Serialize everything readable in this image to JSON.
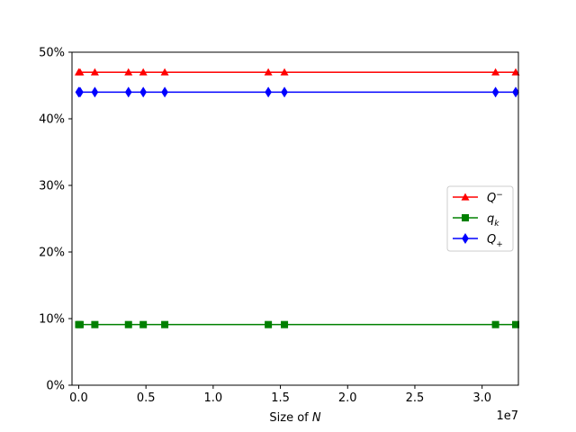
{
  "chart_data": {
    "type": "line",
    "xlabel_prefix": "Size of ",
    "xlabel_var": "N",
    "x_offset_label": "1e7",
    "xlim": [
      -0.05,
      3.27
    ],
    "ylim": [
      0,
      50
    ],
    "x_ticks": [
      0.0,
      0.5,
      1.0,
      1.5,
      2.0,
      2.5,
      3.0
    ],
    "x_tick_labels": [
      "0.0",
      "0.5",
      "1.0",
      "1.5",
      "2.0",
      "2.5",
      "3.0"
    ],
    "y_ticks": [
      0,
      10,
      20,
      30,
      40,
      50
    ],
    "y_tick_labels": [
      "0%",
      "10%",
      "20%",
      "30%",
      "40%",
      "50%"
    ],
    "x": [
      0.0,
      0.01,
      0.12,
      0.37,
      0.48,
      0.64,
      1.41,
      1.53,
      3.1,
      3.25
    ],
    "series": [
      {
        "name": "Q^-",
        "legend_main": "Q",
        "legend_sup": "−",
        "legend_sub": "",
        "color": "#ff0000",
        "marker": "triangle",
        "values": [
          47,
          47,
          47,
          47,
          47,
          47,
          47,
          47,
          47,
          47
        ]
      },
      {
        "name": "q_k",
        "legend_main": "q",
        "legend_sup": "",
        "legend_sub": "k",
        "color": "#008000",
        "marker": "square",
        "values": [
          9.1,
          9.1,
          9.1,
          9.1,
          9.1,
          9.1,
          9.1,
          9.1,
          9.1,
          9.1
        ]
      },
      {
        "name": "Q_+",
        "legend_main": "Q",
        "legend_sup": "",
        "legend_sub": "+",
        "color": "#0000ff",
        "marker": "diamond",
        "values": [
          44,
          44,
          44,
          44,
          44,
          44,
          44,
          44,
          44,
          44
        ]
      }
    ],
    "legend_position": "center-right",
    "grid": false
  }
}
